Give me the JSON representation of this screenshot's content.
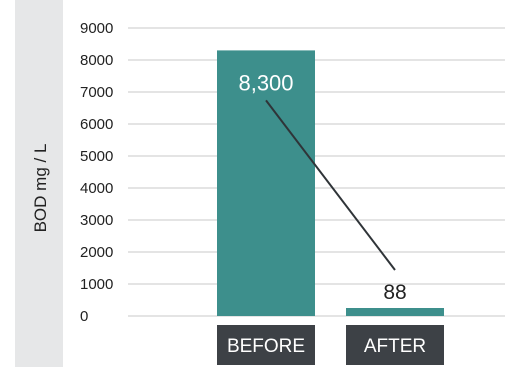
{
  "chart_data": {
    "type": "bar",
    "categories": [
      "BEFORE",
      "AFTER"
    ],
    "values": [
      8300,
      88
    ],
    "data_labels": [
      "8,300",
      "88"
    ],
    "ylabel": "BOD mg / L",
    "ylim": [
      0,
      9000
    ],
    "yticks": [
      0,
      1000,
      2000,
      3000,
      4000,
      5000,
      6000,
      7000,
      8000,
      9000
    ],
    "ytick_labels": [
      "0",
      "1000",
      "2000",
      "3000",
      "4000",
      "5000",
      "6000",
      "7000",
      "8000",
      "9000"
    ],
    "grid": true,
    "legend": "none",
    "colors": {
      "bar": "#3d8f8c",
      "category_box": "#3d4146",
      "label_strip": "#e6e7e8",
      "connector": "#2f3438"
    }
  }
}
